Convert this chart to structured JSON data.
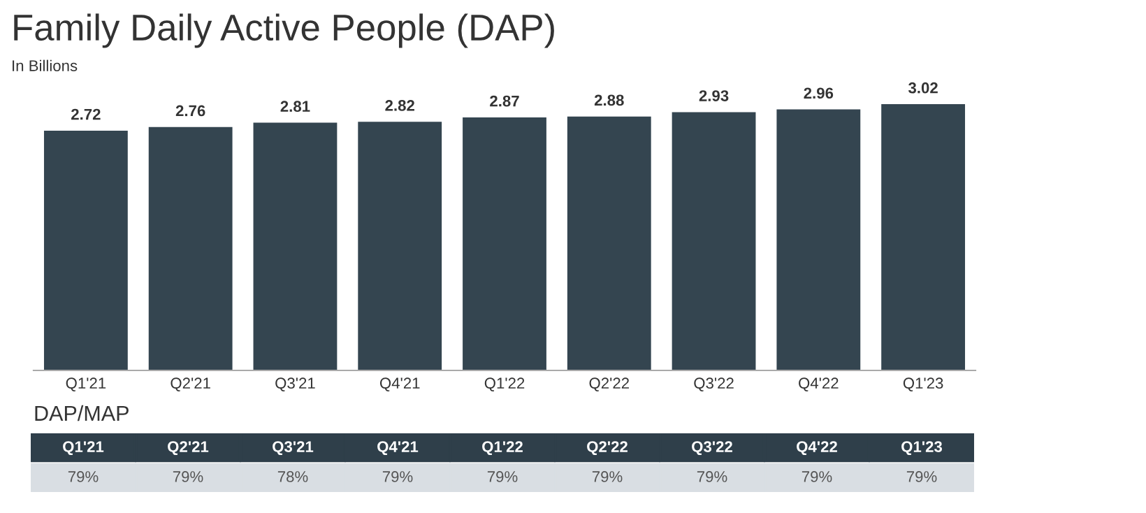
{
  "chart_data": [
    {
      "type": "bar",
      "title": "Family Daily Active People (DAP)",
      "subtitle": "In Billions",
      "data_labels": true,
      "color": "#344550",
      "grid": false,
      "legend": false,
      "categories": [
        "Q1'21",
        "Q2'21",
        "Q3'21",
        "Q4'21",
        "Q1'22",
        "Q2'22",
        "Q3'22",
        "Q4'22",
        "Q1'23"
      ],
      "values": [
        2.72,
        2.76,
        2.81,
        2.82,
        2.87,
        2.88,
        2.93,
        2.96,
        3.02
      ]
    },
    {
      "type": "other",
      "title": "DAP/MAP",
      "categories": [
        "Q1'21",
        "Q2'21",
        "Q3'21",
        "Q4'21",
        "Q1'22",
        "Q2'22",
        "Q3'22",
        "Q4'22",
        "Q1'23"
      ],
      "values": [
        79,
        79,
        78,
        79,
        79,
        79,
        79,
        79,
        79
      ],
      "value_labels": [
        "79%",
        "79%",
        "78%",
        "79%",
        "79%",
        "79%",
        "79%",
        "79%",
        "79%"
      ]
    }
  ]
}
